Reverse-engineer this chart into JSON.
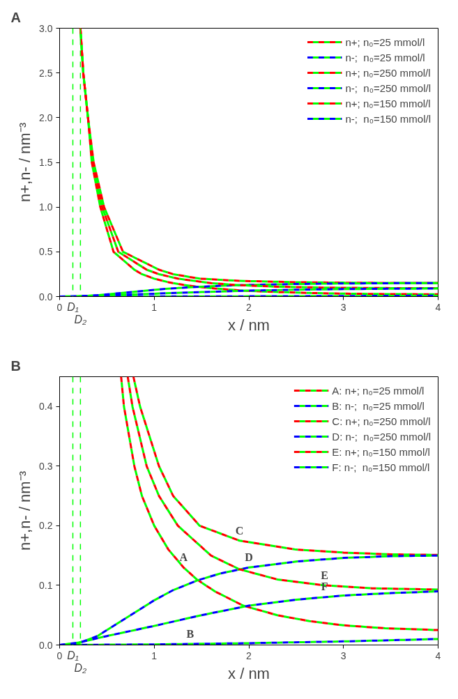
{
  "chart_data": [
    {
      "type": "line",
      "title": "A",
      "xlabel": "x / nm",
      "ylabel": "n+,n- / nm⁻³",
      "xlim": [
        0,
        4
      ],
      "xticks": [
        0,
        1,
        2,
        3,
        4
      ],
      "ylim": [
        0,
        3
      ],
      "yticks": [
        {
          "value": 0,
          "label": "0.0"
        },
        0.5,
        {
          "value": 1,
          "label": "1.0"
        },
        1.5,
        {
          "value": 2,
          "label": "2.0"
        },
        2.5,
        {
          "value": 3,
          "label": "3.0"
        }
      ],
      "legend": "top right",
      "grid": false,
      "line_style": "dashed",
      "ref_lines": [
        {
          "axis": "x",
          "value": 0.14,
          "label": "D₁",
          "color": "#00ff00",
          "line_style": "dashed"
        },
        {
          "axis": "x",
          "value": 0.22,
          "label": "D₂",
          "color": "#00ff00",
          "line_style": "dashed"
        }
      ],
      "series": [
        {
          "name": "n+; n₀=25 mmol/l",
          "color": "#ff0000",
          "x": [
            0.22,
            0.25,
            0.3,
            0.34,
            0.43,
            0.57,
            0.79,
            0.87,
            1.0,
            1.15,
            1.31,
            1.45,
            1.64,
            1.94,
            2.3,
            2.64,
            3.0,
            3.44,
            4
          ],
          "values": [
            3.0,
            2.5,
            2.0,
            1.5,
            1.0,
            0.5,
            0.3,
            0.25,
            0.2,
            0.16,
            0.13,
            0.11,
            0.09,
            0.066,
            0.05,
            0.04,
            0.033,
            0.028,
            0.025
          ]
        },
        {
          "name": "n-;  n₀=25 mmol/l",
          "color": "#0000ff",
          "x": [
            0,
            1,
            2,
            3,
            4
          ],
          "values": [
            0,
            0.001,
            0.003,
            0.006,
            0.01
          ]
        },
        {
          "name": "n+; n₀=250 mmol/l",
          "color": "#ff0000",
          "x": [
            0.22,
            0.25,
            0.3,
            0.36,
            0.47,
            0.67,
            1.05,
            1.2,
            1.48,
            1.9,
            2.5,
            3.0,
            3.5,
            4
          ],
          "values": [
            3.0,
            2.5,
            2.0,
            1.5,
            1.0,
            0.5,
            0.3,
            0.25,
            0.2,
            0.175,
            0.16,
            0.155,
            0.152,
            0.151
          ]
        },
        {
          "name": "n-;  n₀=250 mmol/l",
          "color": "#0000ff",
          "x": [
            0,
            0.2,
            0.4,
            0.6,
            0.8,
            1.0,
            1.2,
            1.45,
            1.7,
            2.0,
            2.5,
            3.0,
            3.5,
            4
          ],
          "values": [
            0,
            0.003,
            0.015,
            0.035,
            0.055,
            0.075,
            0.092,
            0.108,
            0.12,
            0.13,
            0.14,
            0.146,
            0.149,
            0.15
          ]
        },
        {
          "name": "n+; n₀=150 mmol/l",
          "color": "#ff0000",
          "x": [
            0.22,
            0.25,
            0.3,
            0.35,
            0.45,
            0.62,
            0.92,
            1.05,
            1.25,
            1.6,
            1.9,
            2.3,
            2.8,
            3.3,
            4
          ],
          "values": [
            3.0,
            2.5,
            2.0,
            1.5,
            1.0,
            0.5,
            0.3,
            0.25,
            0.2,
            0.15,
            0.127,
            0.11,
            0.1,
            0.095,
            0.093
          ]
        },
        {
          "name": "n-;  n₀=150 mmol/l",
          "color": "#0000ff",
          "x": [
            0,
            0.2,
            0.5,
            1.0,
            1.5,
            2.0,
            2.5,
            3.0,
            3.5,
            4
          ],
          "values": [
            0,
            0.004,
            0.015,
            0.032,
            0.05,
            0.066,
            0.076,
            0.083,
            0.087,
            0.09
          ]
        }
      ]
    },
    {
      "type": "line",
      "title": "B",
      "xlabel": "x / nm",
      "ylabel": "n+,n- / nm⁻³",
      "xlim": [
        0,
        4
      ],
      "xticks": [
        0,
        1,
        2,
        3,
        4
      ],
      "ylim": [
        0,
        0.45
      ],
      "yticks": [
        {
          "value": 0,
          "label": "0.0"
        },
        0.1,
        0.2,
        0.3,
        0.4
      ],
      "legend": "top right",
      "grid": false,
      "line_style": "dashed",
      "ref_lines": [
        {
          "axis": "x",
          "value": 0.14,
          "label": "D₁",
          "color": "#00ff00",
          "line_style": "dashed"
        },
        {
          "axis": "x",
          "value": 0.22,
          "label": "D₂",
          "color": "#00ff00",
          "line_style": "dashed"
        }
      ],
      "annotations": [
        {
          "text": "A",
          "x": 1.31,
          "y": 0.13
        },
        {
          "text": "B",
          "x": 1.38,
          "y": 0.002
        },
        {
          "text": "C",
          "x": 1.9,
          "y": 0.175
        },
        {
          "text": "D",
          "x": 2.0,
          "y": 0.13
        },
        {
          "text": "E",
          "x": 2.8,
          "y": 0.1
        },
        {
          "text": "F",
          "x": 2.8,
          "y": 0.081
        }
      ],
      "series": [
        {
          "name": "A: n+; n₀=25 mmol/l",
          "color": "#ff0000",
          "x": [
            0.65,
            0.68,
            0.79,
            0.87,
            1.0,
            1.15,
            1.31,
            1.45,
            1.64,
            1.94,
            2.3,
            2.64,
            3.0,
            3.44,
            4
          ],
          "values": [
            0.45,
            0.4,
            0.3,
            0.25,
            0.2,
            0.16,
            0.13,
            0.11,
            0.09,
            0.066,
            0.05,
            0.04,
            0.033,
            0.028,
            0.025
          ]
        },
        {
          "name": "B: n-;  n₀=25 mmol/l",
          "color": "#0000ff",
          "x": [
            0,
            1,
            2,
            3,
            4
          ],
          "values": [
            0,
            0.001,
            0.003,
            0.006,
            0.01
          ]
        },
        {
          "name": "C: n+; n₀=250 mmol/l",
          "color": "#ff0000",
          "x": [
            0.78,
            0.85,
            1.05,
            1.2,
            1.48,
            1.9,
            2.5,
            3.0,
            3.5,
            4
          ],
          "values": [
            0.45,
            0.4,
            0.3,
            0.25,
            0.2,
            0.175,
            0.16,
            0.155,
            0.152,
            0.151
          ]
        },
        {
          "name": "D: n-;  n₀=250 mmol/l",
          "color": "#0000ff",
          "x": [
            0,
            0.2,
            0.4,
            0.6,
            0.8,
            1.0,
            1.2,
            1.45,
            1.7,
            2.0,
            2.5,
            3.0,
            3.5,
            4
          ],
          "values": [
            0,
            0.003,
            0.015,
            0.035,
            0.055,
            0.075,
            0.092,
            0.108,
            0.12,
            0.13,
            0.14,
            0.146,
            0.149,
            0.15
          ]
        },
        {
          "name": "E: n+; n₀=150 mmol/l",
          "color": "#ff0000",
          "x": [
            0.72,
            0.77,
            0.92,
            1.05,
            1.25,
            1.6,
            1.9,
            2.3,
            2.8,
            3.3,
            4
          ],
          "values": [
            0.45,
            0.4,
            0.3,
            0.25,
            0.2,
            0.15,
            0.127,
            0.11,
            0.1,
            0.095,
            0.093
          ]
        },
        {
          "name": "F: n-;  n₀=150 mmol/l",
          "color": "#0000ff",
          "x": [
            0,
            0.2,
            0.5,
            1.0,
            1.5,
            2.0,
            2.5,
            3.0,
            3.5,
            4
          ],
          "values": [
            0,
            0.004,
            0.015,
            0.032,
            0.05,
            0.066,
            0.076,
            0.083,
            0.087,
            0.09
          ]
        }
      ]
    }
  ]
}
